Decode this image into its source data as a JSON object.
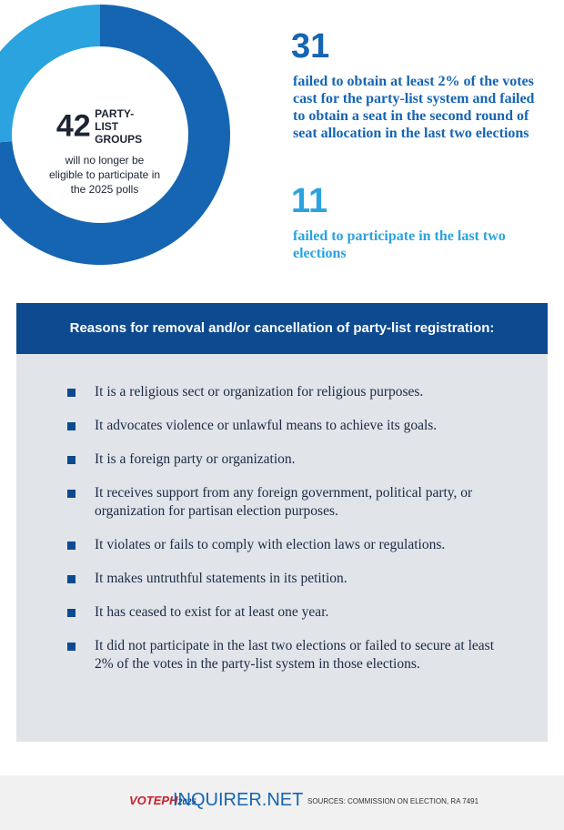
{
  "chart_data": {
    "type": "donut",
    "categories": [
      "failed to obtain at least 2% of the votes cast for the party-list system and failed to obtain a seat in the second round of seat allocation in the last two elections",
      "failed to participate in the last two elections"
    ],
    "values": [
      31,
      11
    ],
    "colors": [
      "#1565b2",
      "#2aa3df"
    ],
    "center_value": 42,
    "center_label": "PARTY-LIST GROUPS",
    "center_note": "will no longer be eligible to participate in the 2025 polls"
  },
  "reasons": {
    "title": "Reasons for removal and/or cancellation of party-list registration:",
    "items": [
      "It is a religious sect or organization for religious purposes.",
      "It advocates violence or unlawful means to achieve its goals.",
      "It is a foreign party or organization.",
      "It receives support from any foreign government, political party, or organization for partisan election purposes.",
      "It violates or fails to comply with election laws or regulations.",
      "It makes untruthful statements in its petition.",
      "It has ceased to exist for at least one year.",
      "It did not participate in the last two elections or failed to secure at least 2% of the votes in the party-list system in those elections."
    ]
  },
  "footer": {
    "logo_left": "VOTEPH",
    "logo_year": "2025",
    "site": "INQUIRER.NET",
    "sources": "SOURCES: COMMISSION ON ELECTION, RA 7491"
  }
}
